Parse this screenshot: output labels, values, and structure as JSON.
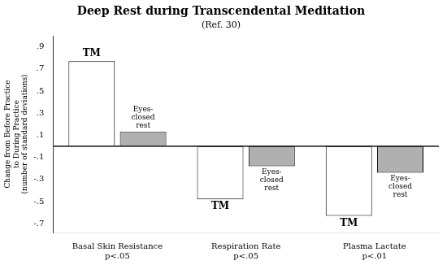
{
  "chart_data": {
    "type": "bar",
    "title": "Deep Rest during Transcendental Meditation",
    "subtitle": "(Ref. 30)",
    "ylabel": [
      "Change from Before Practice",
      "to During Practice",
      "(number of standard deviations)"
    ],
    "categories": [
      "Basal Skin Resistance",
      "Respiration Rate",
      "Plasma Lactate"
    ],
    "annotations": [
      "p<.05",
      "p<.05",
      "p<.01"
    ],
    "series": [
      {
        "name": "TM",
        "color": "#ffffff",
        "values": [
          0.77,
          -0.48,
          -0.63
        ]
      },
      {
        "name": "Eyes-closed rest",
        "color": "#b0b0b0",
        "values": [
          0.13,
          -0.18,
          -0.24
        ]
      }
    ],
    "ylim": [
      -0.78,
      1.0
    ],
    "yticks": [
      {
        "value": -0.7,
        "label": "-.7"
      },
      {
        "value": -0.5,
        "label": "-.5"
      },
      {
        "value": -0.3,
        "label": "-.3"
      },
      {
        "value": -0.1,
        "label": "-.1"
      },
      {
        "value": 0.1,
        "label": ".1"
      },
      {
        "value": 0.3,
        "label": ".3"
      },
      {
        "value": 0.5,
        "label": ".5"
      },
      {
        "value": 0.7,
        "label": ".7"
      },
      {
        "value": 0.9,
        "label": ".9"
      }
    ],
    "grid": false
  }
}
